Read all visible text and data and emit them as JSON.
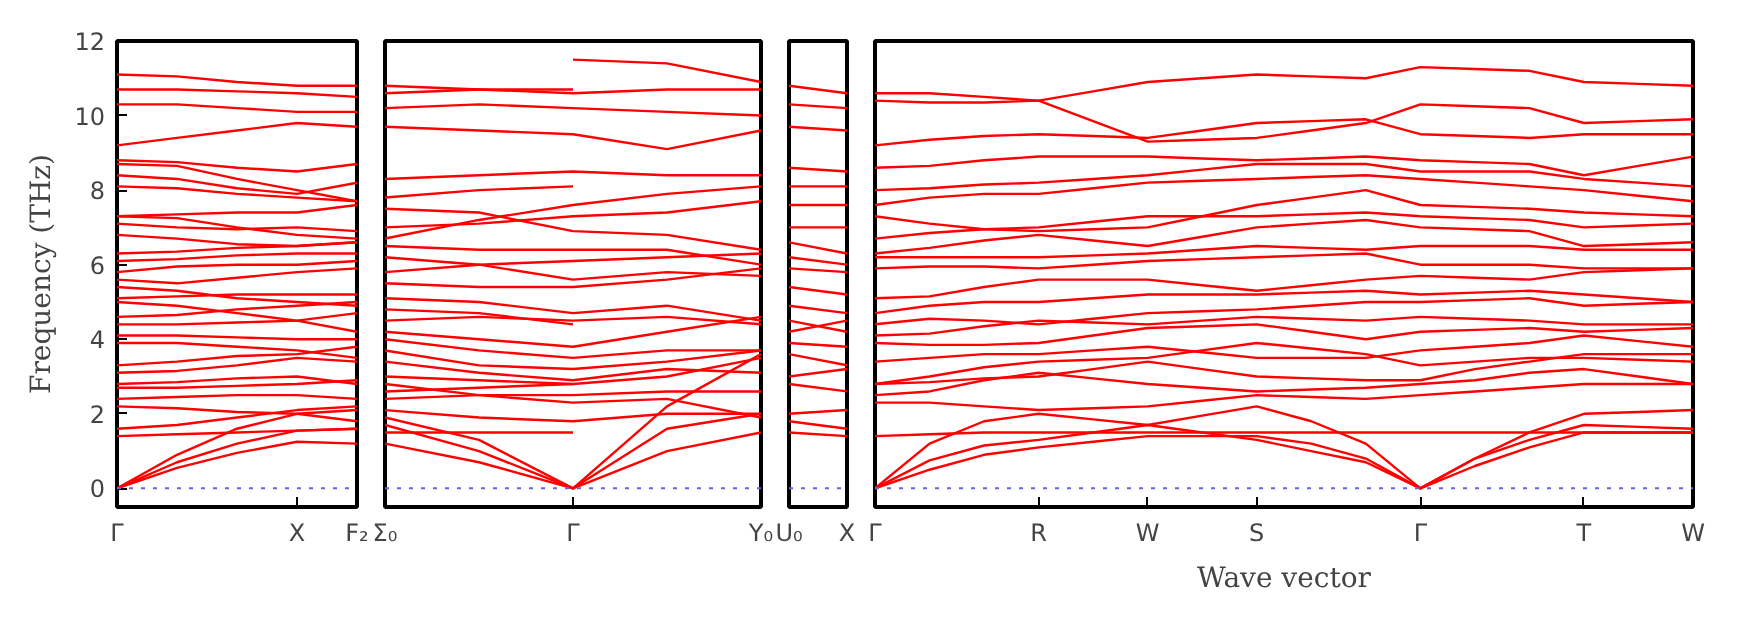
{
  "chart_data": [
    {
      "type": "line",
      "ylabel": "Frequency (THz)",
      "color": "#ff0000",
      "categories": [
        "Γ",
        null,
        null,
        "X",
        "F₂"
      ],
      "ylim": [
        -0.5,
        12
      ],
      "yticks": [
        0,
        2,
        4,
        6,
        8,
        10,
        12
      ],
      "ref_lines": [
        {
          "axis": "y",
          "value": 0,
          "label": null,
          "color": "#6666dd",
          "line_style": "dotted"
        }
      ],
      "series": [
        {
          "values": [
            0,
            0.55,
            0.95,
            1.25,
            1.2
          ]
        },
        {
          "values": [
            0,
            0.9,
            1.6,
            2.0,
            2.1
          ]
        },
        {
          "values": [
            0,
            0.7,
            1.2,
            1.55,
            1.6
          ]
        },
        {
          "values": [
            1.4,
            1.45,
            1.5,
            1.55,
            1.6
          ]
        },
        {
          "values": [
            1.6,
            1.7,
            1.9,
            2.1,
            2.2
          ]
        },
        {
          "values": [
            2.2,
            2.15,
            2.05,
            2.0,
            1.8
          ]
        },
        {
          "values": [
            2.4,
            2.45,
            2.5,
            2.5,
            2.4
          ]
        },
        {
          "values": [
            2.7,
            2.7,
            2.75,
            2.8,
            2.9
          ]
        },
        {
          "values": [
            2.8,
            2.85,
            2.95,
            3.0,
            2.8
          ]
        },
        {
          "values": [
            3.1,
            3.15,
            3.3,
            3.5,
            3.4
          ]
        },
        {
          "values": [
            3.3,
            3.4,
            3.55,
            3.6,
            3.8
          ]
        },
        {
          "values": [
            3.9,
            3.9,
            3.8,
            3.7,
            3.5
          ]
        },
        {
          "values": [
            4.1,
            4.1,
            4.05,
            4.0,
            4.0
          ]
        },
        {
          "values": [
            4.4,
            4.4,
            4.45,
            4.5,
            4.7
          ]
        },
        {
          "values": [
            4.6,
            4.65,
            4.8,
            4.9,
            5.0
          ]
        },
        {
          "values": [
            5.0,
            4.9,
            4.7,
            4.5,
            4.2
          ]
        },
        {
          "values": [
            5.1,
            5.15,
            5.2,
            5.2,
            5.2
          ]
        },
        {
          "values": [
            5.4,
            5.3,
            5.1,
            5.0,
            4.9
          ]
        },
        {
          "values": [
            5.6,
            5.5,
            5.65,
            5.8,
            5.9
          ]
        },
        {
          "values": [
            5.8,
            5.95,
            6.0,
            6.0,
            6.1
          ]
        },
        {
          "values": [
            6.1,
            6.15,
            6.25,
            6.3,
            6.3
          ]
        },
        {
          "values": [
            6.3,
            6.35,
            6.45,
            6.5,
            6.6
          ]
        },
        {
          "values": [
            6.8,
            6.7,
            6.55,
            6.5,
            6.6
          ]
        },
        {
          "values": [
            7.1,
            7.0,
            6.95,
            7.0,
            6.9
          ]
        },
        {
          "values": [
            7.3,
            7.25,
            7.0,
            6.8,
            6.7
          ]
        },
        {
          "values": [
            7.3,
            7.35,
            7.4,
            7.4,
            7.6
          ]
        },
        {
          "values": [
            8.1,
            8.05,
            7.9,
            7.8,
            7.7
          ]
        },
        {
          "values": [
            8.4,
            8.3,
            8.05,
            7.9,
            8.2
          ]
        },
        {
          "values": [
            8.7,
            8.65,
            8.3,
            8.0,
            7.7
          ]
        },
        {
          "values": [
            8.8,
            8.75,
            8.6,
            8.5,
            8.7
          ]
        },
        {
          "values": [
            9.2,
            9.4,
            9.6,
            9.8,
            9.7
          ]
        },
        {
          "values": [
            10.3,
            10.3,
            10.2,
            10.1,
            10.1
          ]
        },
        {
          "values": [
            10.7,
            10.7,
            10.65,
            10.6,
            10.5
          ]
        },
        {
          "values": [
            11.1,
            11.05,
            10.9,
            10.8,
            10.8
          ]
        }
      ]
    },
    {
      "type": "line",
      "color": "#ff0000",
      "tick_labels": "x",
      "categories": [
        "Σ₀",
        null,
        "Γ",
        null,
        "Y₀"
      ],
      "ylim": [
        -0.5,
        12
      ],
      "ref_lines": [
        {
          "axis": "y",
          "value": 0,
          "label": null,
          "color": "#6666dd",
          "line_style": "dotted"
        }
      ],
      "series": [
        {
          "values": [
            1.2,
            0.7,
            0,
            1.0,
            1.5
          ]
        },
        {
          "values": [
            1.7,
            1.0,
            0,
            1.6,
            2.0
          ]
        },
        {
          "values": [
            1.9,
            1.3,
            0,
            2.2,
            3.6
          ]
        },
        {
          "values": [
            1.5,
            1.5,
            1.5,
            null,
            null
          ]
        },
        {
          "values": [
            2.1,
            1.9,
            1.8,
            2.0,
            2.0
          ]
        },
        {
          "values": [
            2.8,
            2.5,
            2.3,
            2.4,
            1.9
          ]
        },
        {
          "values": [
            2.4,
            2.5,
            2.5,
            2.6,
            2.6
          ]
        },
        {
          "values": [
            2.6,
            2.7,
            2.8,
            3.0,
            3.5
          ]
        },
        {
          "values": [
            3.0,
            2.9,
            2.8,
            null,
            null
          ]
        },
        {
          "values": [
            3.4,
            3.1,
            2.9,
            3.2,
            3.1
          ]
        },
        {
          "values": [
            3.7,
            3.3,
            3.2,
            3.4,
            3.7
          ]
        },
        {
          "values": [
            4.0,
            3.7,
            3.5,
            3.7,
            3.7
          ]
        },
        {
          "values": [
            4.2,
            4.0,
            3.8,
            4.2,
            4.6
          ]
        },
        {
          "values": [
            4.5,
            4.6,
            4.5,
            4.6,
            4.4
          ]
        },
        {
          "values": [
            4.8,
            4.7,
            4.4,
            null,
            null
          ]
        },
        {
          "values": [
            5.1,
            5.0,
            4.7,
            4.9,
            4.5
          ]
        },
        {
          "values": [
            5.5,
            5.4,
            5.4,
            5.6,
            5.9
          ]
        },
        {
          "values": [
            6.2,
            6.0,
            5.6,
            5.8,
            5.7
          ]
        },
        {
          "values": [
            5.8,
            6.0,
            6.1,
            6.2,
            6.3
          ]
        },
        {
          "values": [
            6.5,
            6.4,
            6.4,
            6.4,
            6.0
          ]
        },
        {
          "values": [
            7.5,
            7.4,
            6.9,
            6.8,
            6.4
          ]
        },
        {
          "values": [
            7.0,
            7.1,
            7.3,
            7.4,
            7.7
          ]
        },
        {
          "values": [
            6.7,
            7.2,
            7.6,
            7.9,
            8.1
          ]
        },
        {
          "values": [
            7.8,
            8.0,
            8.1,
            null,
            null
          ]
        },
        {
          "values": [
            8.3,
            8.4,
            8.5,
            8.4,
            8.4
          ]
        },
        {
          "values": [
            9.7,
            9.6,
            9.5,
            9.1,
            9.6
          ]
        },
        {
          "values": [
            10.2,
            10.3,
            10.2,
            10.1,
            10.0
          ]
        },
        {
          "values": [
            10.6,
            10.7,
            10.6,
            10.7,
            10.7
          ]
        },
        {
          "values": [
            10.8,
            10.7,
            10.7,
            null,
            null
          ]
        },
        {
          "values": [
            null,
            null,
            11.5,
            11.4,
            10.9
          ]
        }
      ]
    },
    {
      "type": "line",
      "color": "#ff0000",
      "tick_labels": "x",
      "categories": [
        "U₀",
        "X"
      ],
      "ylim": [
        -0.5,
        12
      ],
      "ref_lines": [
        {
          "axis": "y",
          "value": 0,
          "label": null,
          "color": "#6666dd",
          "line_style": "dotted"
        }
      ],
      "series": [
        {
          "values": [
            1.5,
            1.4
          ]
        },
        {
          "values": [
            1.8,
            1.6
          ]
        },
        {
          "values": [
            2.0,
            2.1
          ]
        },
        {
          "values": [
            2.8,
            2.6
          ]
        },
        {
          "values": [
            3.0,
            3.2
          ]
        },
        {
          "values": [
            3.6,
            3.3
          ]
        },
        {
          "values": [
            3.9,
            3.8
          ]
        },
        {
          "values": [
            4.2,
            4.5
          ]
        },
        {
          "values": [
            4.5,
            4.2
          ]
        },
        {
          "values": [
            4.9,
            4.7
          ]
        },
        {
          "values": [
            5.4,
            5.2
          ]
        },
        {
          "values": [
            5.9,
            5.8
          ]
        },
        {
          "values": [
            6.2,
            6.0
          ]
        },
        {
          "values": [
            6.6,
            6.3
          ]
        },
        {
          "values": [
            7.0,
            7.0
          ]
        },
        {
          "values": [
            7.6,
            7.6
          ]
        },
        {
          "values": [
            8.1,
            8.1
          ]
        },
        {
          "values": [
            8.6,
            8.5
          ]
        },
        {
          "values": [
            9.7,
            9.6
          ]
        },
        {
          "values": [
            10.3,
            10.2
          ]
        },
        {
          "values": [
            10.8,
            10.6
          ]
        }
      ]
    },
    {
      "type": "line",
      "xlabel": "Wave vector",
      "color": "#ff0000",
      "tick_labels": "x",
      "categories": [
        "Γ",
        null,
        null,
        "R",
        null,
        "W",
        null,
        "S",
        null,
        null,
        "Γ",
        null,
        null,
        "T",
        null,
        "W"
      ],
      "ylim": [
        -0.5,
        12
      ],
      "ref_lines": [
        {
          "axis": "y",
          "value": 0,
          "label": null,
          "color": "#6666dd",
          "line_style": "dotted"
        }
      ],
      "series": [
        {
          "values": [
            0,
            0.5,
            0.9,
            1.1,
            1.25,
            1.4,
            1.4,
            1.4,
            1.2,
            0.8,
            0,
            0.8,
            1.5,
            2.0,
            2.05,
            2.1
          ]
        },
        {
          "values": [
            0,
            0.75,
            1.15,
            1.3,
            1.5,
            1.7,
            1.5,
            1.3,
            1.0,
            0.7,
            0,
            0.6,
            1.1,
            1.5,
            1.5,
            1.5
          ]
        },
        {
          "values": [
            0,
            1.2,
            1.8,
            2.0,
            1.85,
            1.7,
            1.95,
            2.2,
            1.8,
            1.2,
            0,
            0.8,
            1.3,
            1.7,
            1.65,
            1.6
          ]
        },
        {
          "values": [
            1.4,
            1.45,
            1.5,
            1.5,
            1.5,
            1.5,
            1.5,
            1.5,
            1.5,
            1.5,
            1.5,
            1.5,
            1.5,
            1.5,
            1.5,
            1.5
          ]
        },
        {
          "values": [
            2.3,
            2.3,
            2.2,
            2.1,
            2.15,
            2.2,
            2.35,
            2.5,
            2.45,
            2.4,
            2.5,
            2.6,
            2.7,
            2.8,
            2.8,
            2.8
          ]
        },
        {
          "values": [
            2.5,
            2.6,
            2.9,
            3.1,
            2.95,
            2.8,
            2.7,
            2.6,
            2.65,
            2.7,
            2.8,
            2.9,
            3.1,
            3.2,
            3.0,
            2.8
          ]
        },
        {
          "values": [
            2.8,
            3.0,
            3.25,
            3.4,
            3.45,
            3.5,
            3.7,
            3.9,
            3.75,
            3.6,
            3.3,
            3.4,
            3.5,
            3.5,
            3.45,
            3.4
          ]
        },
        {
          "values": [
            2.8,
            2.85,
            2.95,
            3.0,
            3.2,
            3.4,
            3.2,
            3.0,
            2.95,
            2.9,
            2.9,
            3.2,
            3.4,
            3.6,
            3.6,
            3.6
          ]
        },
        {
          "values": [
            3.4,
            3.5,
            3.6,
            3.6,
            3.7,
            3.8,
            3.65,
            3.5,
            3.5,
            3.5,
            3.7,
            3.8,
            3.9,
            4.1,
            3.95,
            3.8
          ]
        },
        {
          "values": [
            3.9,
            3.85,
            3.85,
            3.9,
            4.1,
            4.3,
            4.35,
            4.4,
            4.2,
            4.0,
            4.2,
            4.25,
            4.3,
            4.2,
            4.25,
            4.3
          ]
        },
        {
          "values": [
            4.1,
            4.15,
            4.35,
            4.5,
            4.45,
            4.4,
            4.5,
            4.6,
            4.55,
            4.5,
            4.6,
            4.55,
            4.5,
            4.4,
            4.4,
            4.4
          ]
        },
        {
          "values": [
            4.4,
            4.55,
            4.5,
            4.4,
            4.55,
            4.7,
            4.75,
            4.8,
            4.9,
            5.0,
            5.0,
            5.05,
            5.1,
            4.9,
            4.95,
            5.0
          ]
        },
        {
          "values": [
            4.7,
            4.9,
            5.0,
            5.0,
            5.1,
            5.2,
            5.2,
            5.2,
            5.25,
            5.3,
            5.2,
            5.25,
            5.3,
            5.2,
            5.1,
            5.0
          ]
        },
        {
          "values": [
            5.1,
            5.15,
            5.4,
            5.6,
            5.6,
            5.6,
            5.45,
            5.3,
            5.45,
            5.6,
            5.7,
            5.65,
            5.6,
            5.8,
            5.85,
            5.9
          ]
        },
        {
          "values": [
            5.9,
            5.95,
            5.95,
            5.9,
            6.0,
            6.1,
            6.15,
            6.2,
            6.25,
            6.3,
            6.0,
            6.0,
            6.0,
            5.9,
            5.9,
            5.9
          ]
        },
        {
          "values": [
            6.2,
            6.2,
            6.2,
            6.2,
            6.25,
            6.3,
            6.4,
            6.5,
            6.45,
            6.4,
            6.5,
            6.5,
            6.5,
            6.4,
            6.4,
            6.4
          ]
        },
        {
          "values": [
            6.3,
            6.45,
            6.65,
            6.8,
            6.65,
            6.5,
            6.75,
            7.0,
            7.1,
            7.2,
            7.0,
            6.95,
            6.9,
            6.5,
            6.55,
            6.6
          ]
        },
        {
          "values": [
            6.7,
            6.85,
            6.95,
            7.0,
            7.15,
            7.3,
            7.3,
            7.3,
            7.35,
            7.4,
            7.3,
            7.25,
            7.2,
            7.0,
            7.05,
            7.1
          ]
        },
        {
          "values": [
            7.3,
            7.1,
            6.95,
            6.9,
            6.95,
            7.0,
            7.3,
            7.6,
            7.8,
            8.0,
            7.6,
            7.55,
            7.5,
            7.4,
            7.35,
            7.3
          ]
        },
        {
          "values": [
            7.6,
            7.8,
            7.9,
            7.9,
            8.05,
            8.2,
            8.25,
            8.3,
            8.35,
            8.4,
            8.3,
            8.2,
            8.1,
            8.0,
            7.85,
            7.7
          ]
        },
        {
          "values": [
            8.0,
            8.05,
            8.15,
            8.2,
            8.3,
            8.4,
            8.55,
            8.7,
            8.7,
            8.7,
            8.5,
            8.5,
            8.5,
            8.3,
            8.2,
            8.1
          ]
        },
        {
          "values": [
            8.6,
            8.65,
            8.8,
            8.9,
            8.9,
            8.9,
            8.85,
            8.8,
            8.85,
            8.9,
            8.8,
            8.75,
            8.7,
            8.4,
            8.65,
            8.9
          ]
        },
        {
          "values": [
            9.2,
            9.35,
            9.45,
            9.5,
            9.45,
            9.4,
            9.6,
            9.8,
            9.85,
            9.9,
            9.5,
            9.45,
            9.4,
            9.5,
            9.5,
            9.5
          ]
        },
        {
          "values": [
            10.4,
            10.35,
            10.35,
            10.4,
            9.85,
            9.3,
            9.35,
            9.4,
            9.6,
            9.8,
            10.3,
            10.25,
            10.2,
            9.8,
            9.85,
            9.9
          ]
        },
        {
          "values": [
            10.6,
            10.6,
            10.5,
            10.4,
            10.65,
            10.9,
            11.0,
            11.1,
            11.05,
            11.0,
            11.3,
            11.25,
            11.2,
            10.9,
            10.85,
            10.8
          ]
        }
      ]
    }
  ]
}
